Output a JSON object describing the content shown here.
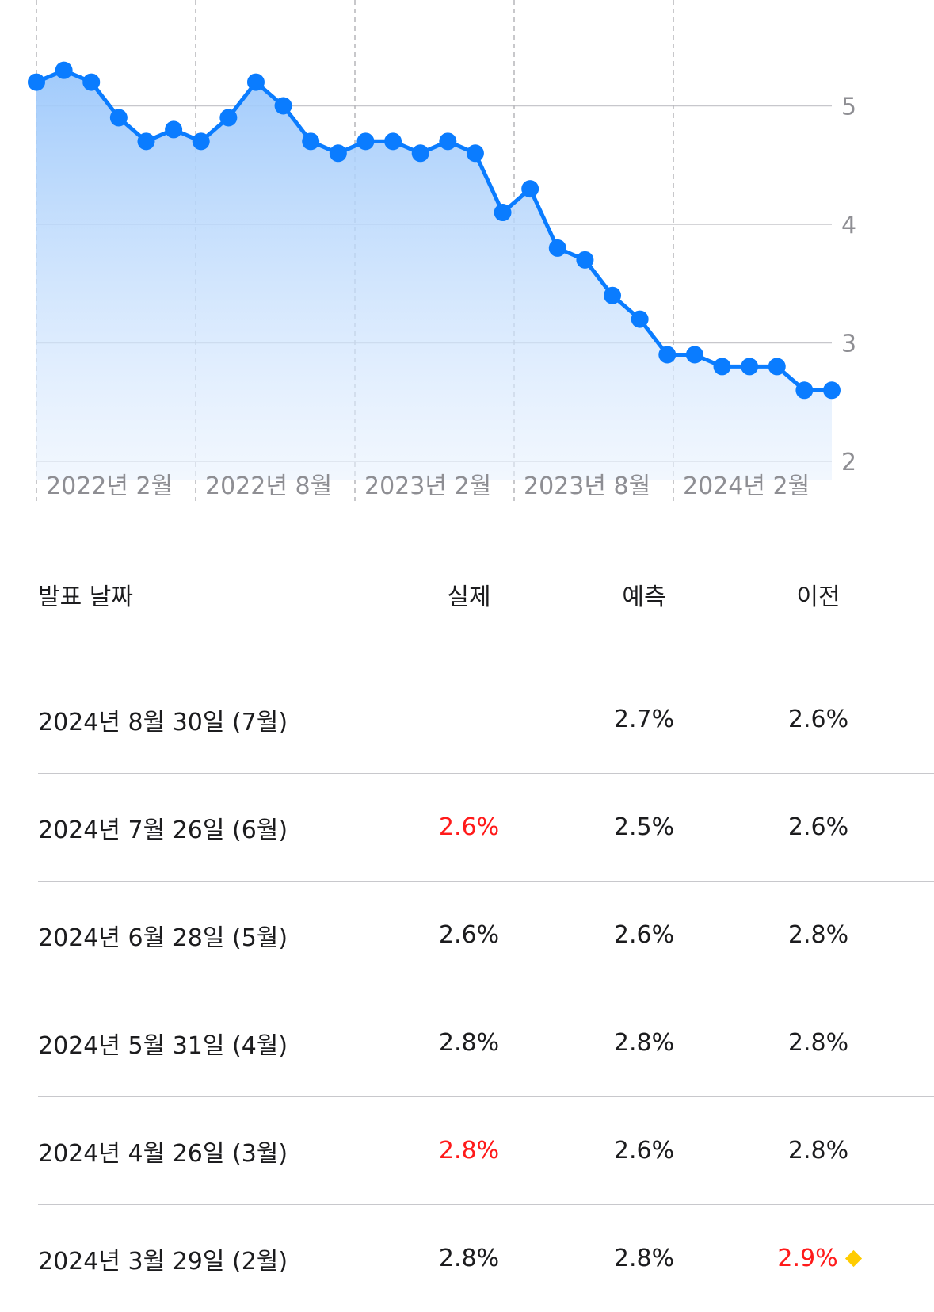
{
  "chart_data": {
    "type": "area",
    "x_labels": [
      "2022년 2월",
      "2022년 8월",
      "2023년 2월",
      "2023년 8월",
      "2024년 2월"
    ],
    "y_ticks": [
      2,
      3,
      4,
      5
    ],
    "ylim": [
      2,
      5.9
    ],
    "values": [
      5.2,
      5.3,
      5.2,
      4.9,
      4.7,
      4.8,
      4.7,
      4.9,
      5.2,
      5.0,
      4.7,
      4.6,
      4.7,
      4.7,
      4.6,
      4.7,
      4.6,
      4.1,
      4.3,
      3.8,
      3.7,
      3.4,
      3.2,
      2.9,
      2.9,
      2.8,
      2.8,
      2.8,
      2.6,
      2.6
    ],
    "line_color": "#0a7cff",
    "grid": true
  },
  "table": {
    "headers": {
      "date": "발표 날짜",
      "actual": "실제",
      "forecast": "예측",
      "previous": "이전"
    },
    "rows": [
      {
        "date": "2024년 8월 30일 (7월)",
        "actual": "",
        "forecast": "2.7%",
        "previous": "2.6%",
        "actual_color": "",
        "previous_color": ""
      },
      {
        "date": "2024년 7월 26일 (6월)",
        "actual": "2.6%",
        "forecast": "2.5%",
        "previous": "2.6%",
        "actual_color": "red",
        "previous_color": ""
      },
      {
        "date": "2024년 6월 28일 (5월)",
        "actual": "2.6%",
        "forecast": "2.6%",
        "previous": "2.8%",
        "actual_color": "",
        "previous_color": ""
      },
      {
        "date": "2024년 5월 31일 (4월)",
        "actual": "2.8%",
        "forecast": "2.8%",
        "previous": "2.8%",
        "actual_color": "",
        "previous_color": ""
      },
      {
        "date": "2024년 4월 26일 (3월)",
        "actual": "2.8%",
        "forecast": "2.6%",
        "previous": "2.8%",
        "actual_color": "red",
        "previous_color": ""
      },
      {
        "date": "2024년 3월 29일 (2월)",
        "actual": "2.8%",
        "forecast": "2.8%",
        "previous": "2.9%",
        "actual_color": "",
        "previous_color": "red",
        "previous_revised": true
      }
    ],
    "revised_marker_icon": "diamond-icon",
    "accent_red": "#ff1a1a",
    "marker_color": "#ffcc00"
  }
}
